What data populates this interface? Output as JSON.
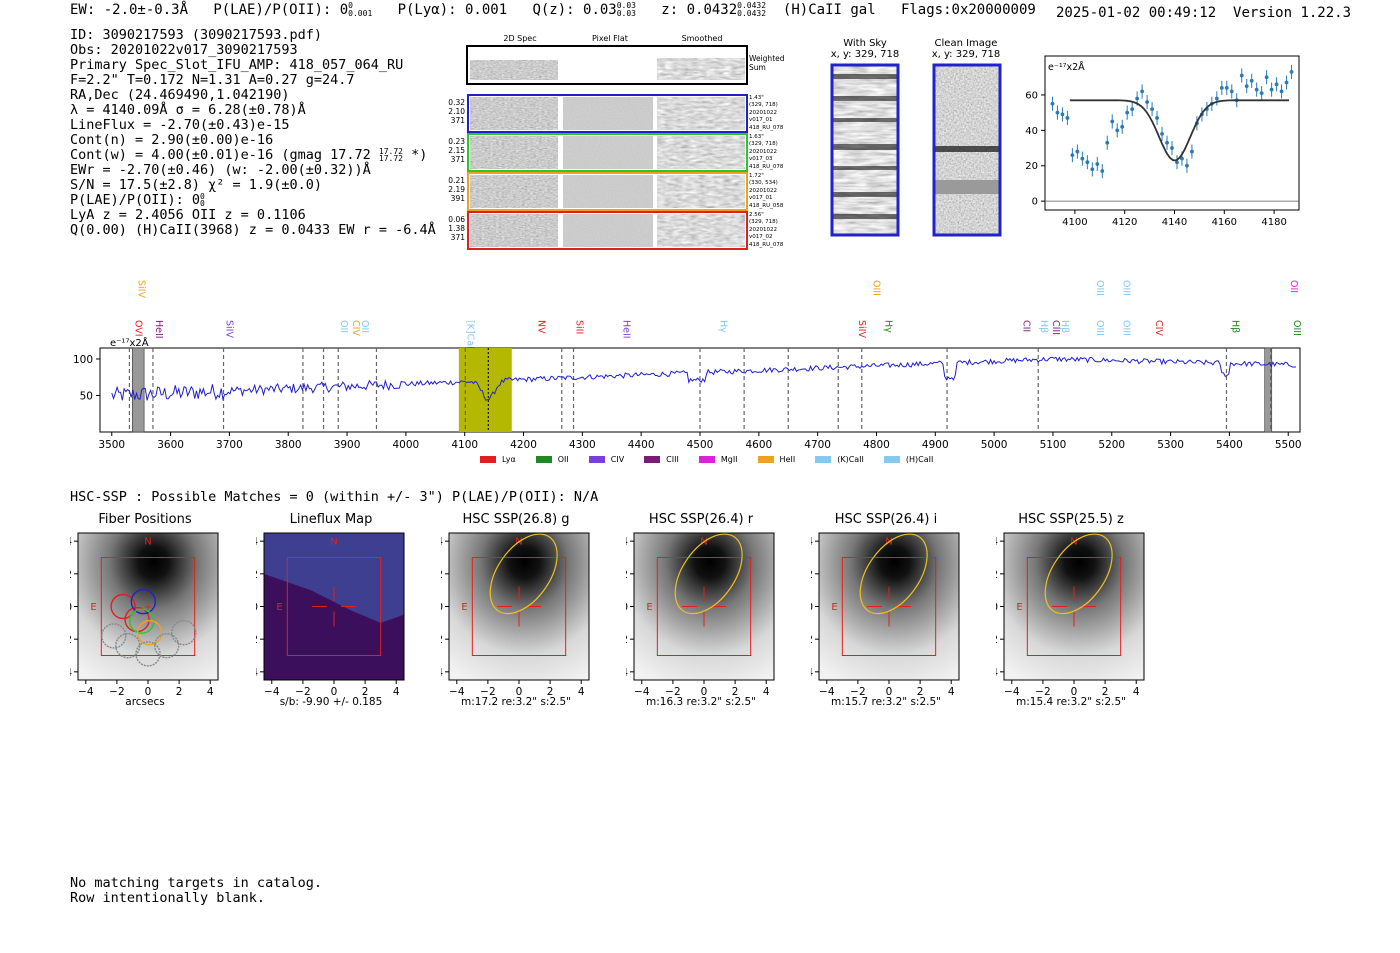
{
  "header": {
    "ew": "EW: -2.0±-0.3Å",
    "plae": "P(LAE)/P(OII): 0",
    "plae_sup": "0",
    "plae_sub": "0.001",
    "plya": "P(Lyα): 0.001",
    "qz": "Q(z): 0.03",
    "qz_sup": "0.03",
    "qz_sub": "0.03",
    "z": "z: 0.0432",
    "z_sup": "0.0432",
    "z_sub": "0.0432",
    "line_id": "(H)CaII  gal",
    "flags": "Flags:0x20000009",
    "datetime": "2025-01-02 00:49:12",
    "version": "Version 1.22.3"
  },
  "info": {
    "lines": [
      "ID: 3090217593 (3090217593.pdf)",
      "Obs: 20201022v017_3090217593",
      "Primary Spec_Slot_IFU_AMP: 418_057_064_RU",
      "F=2.2\"  T=0.172  N=1.31  A=0.27  g=24.7",
      "RA,Dec (24.469490,1.042190)",
      "λ = 4140.09Å  σ = 6.28(±0.78)Å",
      "LineFlux = -2.70(±0.43)e-15",
      "Cont(n) = 2.90(±0.00)e-16"
    ],
    "contw": "Cont(w) = 4.00(±0.01)e-16 (gmag 17.72",
    "contw_sup": "17.72",
    "contw_sub": "17.72",
    "contw_end": "*)",
    "lines2": [
      "EWr = -2.70(±0.46) (w: -2.00(±0.32))Å",
      "S/N = 17.5(±2.8)  χ² = 1.9(±0.0)"
    ],
    "plae_line": "P(LAE)/P(OII): 0",
    "plae_line_sup": "0",
    "plae_line_sub": "0",
    "lines3": [
      "LyA z = 2.4056  OII z = 0.1106",
      "Q(0.00) (H)CaII(3968) z = 0.0433  EW r = -6.4Å"
    ]
  },
  "cutouts": {
    "titles": [
      "2D Spec",
      "Pixel Flat",
      "Smoothed"
    ],
    "weighted_label": "Weighted\nSum",
    "rows": [
      {
        "left": [
          "0.32",
          "2.10",
          "371"
        ],
        "right": [
          "1.43\"",
          "(329, 718)",
          "20201022",
          "v017_01",
          "418_RU_078"
        ],
        "color": "#1f1fd0"
      },
      {
        "left": [
          "0.23",
          "2.15",
          "371"
        ],
        "right": [
          "1.63\"",
          "(329, 718)",
          "20201022",
          "v017_03",
          "418_RU_078"
        ],
        "color": "#22cc22"
      },
      {
        "left": [
          "0.21",
          "2.19",
          "391"
        ],
        "right": [
          "1.72\"",
          "(330, 534)",
          "20201022",
          "v017_01",
          "418_RU_058"
        ],
        "color": "#f0a020"
      },
      {
        "left": [
          "0.06",
          "1.38",
          "371"
        ],
        "right": [
          "2.56\"",
          "(329, 718)",
          "20201022",
          "v017_02",
          "418_RU_078"
        ],
        "color": "#e02020"
      }
    ],
    "with_sky_title": "With Sky",
    "with_sky_coords": "x, y: 329, 718",
    "clean_title": "Clean Image",
    "clean_coords": "x, y: 329, 718"
  },
  "fit_plot": {
    "unit_label": "e⁻¹⁷x2Å",
    "xticks": [
      "4100",
      "4120",
      "4140",
      "4160",
      "4180"
    ],
    "yticks": [
      "0",
      "20",
      "40",
      "60"
    ]
  },
  "chart_data": [
    {
      "type": "scatter",
      "title": "",
      "xlabel": "",
      "ylabel": "e-17x2A",
      "xlim": [
        4088,
        4190
      ],
      "ylim": [
        -5,
        82
      ],
      "x": [
        4091,
        4093,
        4095,
        4097,
        4099,
        4101,
        4103,
        4105,
        4107,
        4109,
        4111,
        4113,
        4115,
        4117,
        4119,
        4121,
        4123,
        4125,
        4127,
        4129,
        4131,
        4133,
        4135,
        4137,
        4139,
        4141,
        4143,
        4145,
        4147,
        4149,
        4151,
        4153,
        4155,
        4157,
        4159,
        4161,
        4163,
        4165,
        4167,
        4169,
        4171,
        4173,
        4175,
        4177,
        4179,
        4181,
        4183,
        4185,
        4187
      ],
      "y": [
        55,
        50,
        49,
        47,
        26,
        28,
        24,
        22,
        18,
        21,
        17,
        33,
        45,
        40,
        42,
        50,
        52,
        58,
        62,
        56,
        52,
        47,
        38,
        33,
        30,
        22,
        24,
        20,
        28,
        44,
        49,
        52,
        55,
        58,
        64,
        64,
        62,
        57,
        71,
        65,
        68,
        63,
        61,
        70,
        63,
        66,
        62,
        67,
        73
      ],
      "fit": {
        "continuum": 57,
        "center": 4140.09,
        "sigma": 6.28,
        "amplitude": -34
      }
    },
    {
      "type": "line",
      "title": "",
      "xlabel": "",
      "ylabel": "e-17x2A",
      "xlim": [
        3480,
        5520
      ],
      "ylim": [
        0,
        115
      ],
      "xticks": [
        3500,
        3600,
        3700,
        3800,
        3900,
        4000,
        4100,
        4200,
        4300,
        4400,
        4500,
        4600,
        4700,
        4800,
        4900,
        5000,
        5100,
        5200,
        5300,
        5400,
        5500
      ],
      "yticks": [
        50,
        100
      ],
      "highlight_range": [
        4090,
        4180
      ],
      "line_center": 4140.09,
      "masked_ranges": [
        [
          3535,
          3555
        ],
        [
          5460,
          5472
        ]
      ],
      "dashed_lines": [
        3530,
        3570,
        3690,
        3825,
        3860,
        3885,
        3950,
        4101,
        4265,
        4285,
        4500,
        4575,
        4650,
        4735,
        4775,
        4920,
        5075,
        5395,
        5470
      ],
      "line_marks": [
        {
          "label": "SiIV",
          "x": 3540,
          "color": "#f0a020",
          "row": 0
        },
        {
          "label": "OVI",
          "x": 3535,
          "color": "#e02020",
          "row": 1
        },
        {
          "label": "HeII",
          "x": 3570,
          "color": "#7a1a7a",
          "row": 1
        },
        {
          "label": "SiIV",
          "x": 3690,
          "color": "#7b3fe0",
          "row": 1
        },
        {
          "label": "OII",
          "x": 3885,
          "color": "#85c8f0",
          "row": 1
        },
        {
          "label": "CIV",
          "x": 3905,
          "color": "#f0a020",
          "row": 1
        },
        {
          "label": "OII",
          "x": 3920,
          "color": "#85c8f0",
          "row": 1
        },
        {
          "label": "[K]CaII",
          "x": 4100,
          "color": "#85c8f0",
          "row": 1
        },
        {
          "label": "NV",
          "x": 4220,
          "color": "#e02020",
          "row": 1
        },
        {
          "label": "SiII",
          "x": 4285,
          "color": "#e02020",
          "row": 1
        },
        {
          "label": "HeII",
          "x": 4365,
          "color": "#7b3fe0",
          "row": 1
        },
        {
          "label": "Hγ",
          "x": 4530,
          "color": "#85c8f0",
          "row": 1
        },
        {
          "label": "OIII",
          "x": 4790,
          "color": "#f0a020",
          "row": 0
        },
        {
          "label": "SiIV",
          "x": 4765,
          "color": "#e02020",
          "row": 1
        },
        {
          "label": "Hγ",
          "x": 4810,
          "color": "#228822",
          "row": 1
        },
        {
          "label": "CII",
          "x": 5045,
          "color": "#7a1a7a",
          "row": 1
        },
        {
          "label": "Hβ",
          "x": 5075,
          "color": "#85c8f0",
          "row": 1
        },
        {
          "label": "CIII",
          "x": 5095,
          "color": "#7a1a7a",
          "row": 1
        },
        {
          "label": "Hβ",
          "x": 5110,
          "color": "#85c8f0",
          "row": 1
        },
        {
          "label": "OIII",
          "x": 5170,
          "color": "#85c8f0",
          "row": 0
        },
        {
          "label": "OIII",
          "x": 5215,
          "color": "#85c8f0",
          "row": 0
        },
        {
          "label": "OIII",
          "x": 5170,
          "color": "#85c8f0",
          "row": 1
        },
        {
          "label": "OIII",
          "x": 5215,
          "color": "#85c8f0",
          "row": 1
        },
        {
          "label": "CIV",
          "x": 5270,
          "color": "#e02020",
          "row": 1
        },
        {
          "label": "Hβ",
          "x": 5400,
          "color": "#228822",
          "row": 1
        },
        {
          "label": "OII",
          "x": 5500,
          "color": "#dd22dd",
          "row": 0
        },
        {
          "label": "OIII",
          "x": 5505,
          "color": "#228822",
          "row": 1
        }
      ],
      "legend": [
        {
          "label": "Lyα",
          "color": "#e02020"
        },
        {
          "label": "OII",
          "color": "#228822"
        },
        {
          "label": "CIV",
          "color": "#7b3fe0"
        },
        {
          "label": "CIII",
          "color": "#7a1a7a"
        },
        {
          "label": "MgII",
          "color": "#dd22dd"
        },
        {
          "label": "HeII",
          "color": "#f0a020"
        },
        {
          "label": "(K)CaII",
          "color": "#85c8f0"
        },
        {
          "label": "(H)CaII",
          "color": "#85c8f0"
        }
      ]
    }
  ],
  "spectrum_unit": "e⁻¹⁷x2Å",
  "hsc": {
    "header": "HSC-SSP : Possible Matches = 0 (within +/- 3\")  P(LAE)/P(OII): N/A",
    "panels": [
      {
        "title": "Fiber Positions",
        "caption": "arcsecs"
      },
      {
        "title": "Lineflux Map",
        "caption": "s/b: -9.90 +/- 0.185"
      },
      {
        "title": "HSC SSP(26.8) g",
        "caption": "m:17.2  re:3.2\"  s:2.5\""
      },
      {
        "title": "HSC SSP(26.4) r",
        "caption": "m:16.3  re:3.2\"  s:2.5\""
      },
      {
        "title": "HSC SSP(26.4) i",
        "caption": "m:15.7  re:3.2\"  s:2.5\""
      },
      {
        "title": "HSC SSP(25.5) z",
        "caption": "m:15.4  re:3.2\"  s:2.5\""
      }
    ],
    "ticks": [
      "−4",
      "−2",
      "0",
      "2",
      "4"
    ],
    "north": "N",
    "east": "E"
  },
  "footer": {
    "line1": "No matching targets in catalog.",
    "line2": "Row intentionally blank."
  }
}
